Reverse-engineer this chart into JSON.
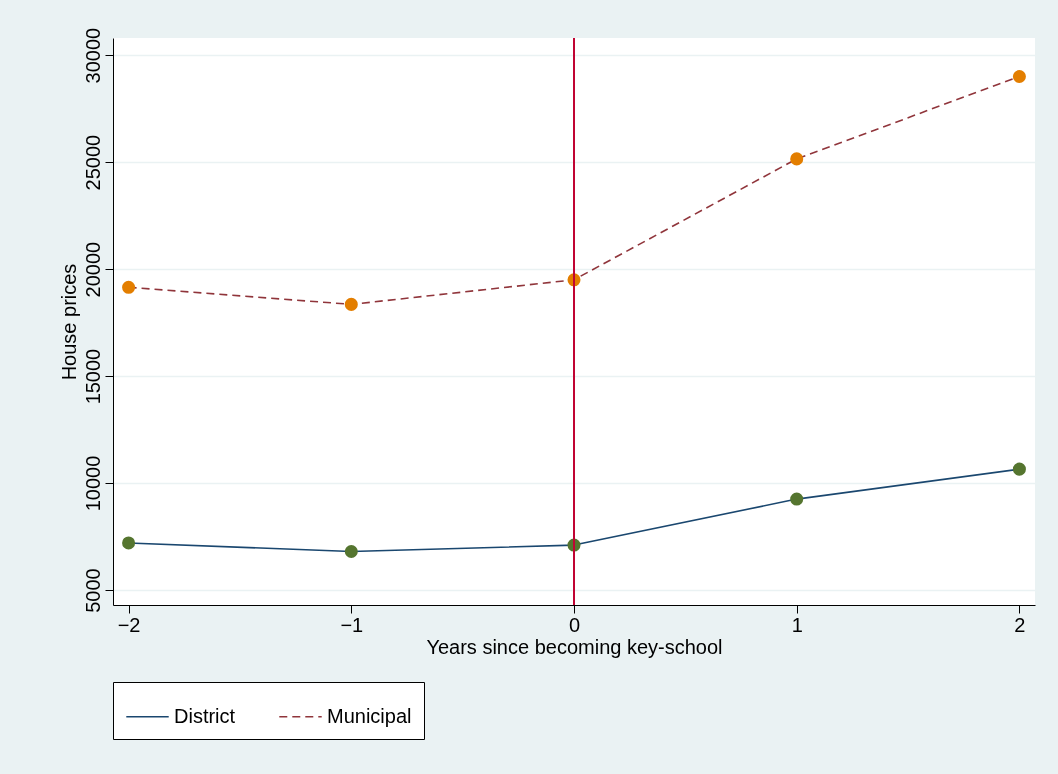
{
  "chart_data": {
    "type": "line",
    "xlabel": "Years since becoming key-school",
    "ylabel": "House prices",
    "x": [
      -2,
      -1,
      0,
      1,
      2
    ],
    "series": [
      {
        "name": "District",
        "color": "#1a476f",
        "colors": [
          "#55752f",
          "#55752f",
          "#55752f",
          "#55752f",
          "#55752f"
        ],
        "line_style": "solid",
        "values": [
          7200,
          6800,
          7100,
          9250,
          10650
        ]
      },
      {
        "name": "Municipal",
        "color": "#90353b",
        "colors": [
          "#e37e00",
          "#e37e00",
          "#e37e00",
          "#e37e00",
          "#e37e00"
        ],
        "line_style": "dashed",
        "values": [
          19150,
          18350,
          19500,
          25150,
          29000
        ]
      }
    ],
    "xlim": [
      -2.07,
      2.07
    ],
    "xticks": [
      -2,
      -1,
      0,
      1,
      2
    ],
    "ylim": [
      4300,
      30800
    ],
    "yticks": [
      5000,
      10000,
      15000,
      20000,
      25000,
      30000
    ],
    "ref_lines": [
      {
        "axis": "x",
        "value": 0,
        "color": "#c10534"
      }
    ],
    "grid": "y",
    "legend": "bottom",
    "marker": "circle"
  }
}
